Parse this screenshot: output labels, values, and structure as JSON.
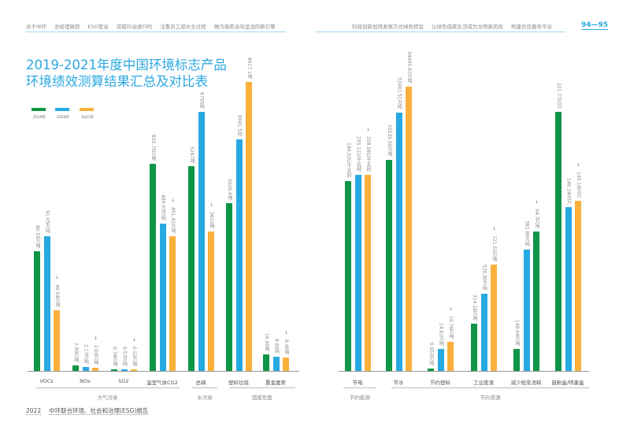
{
  "header": {
    "nav_left": [
      "关于中环",
      "总经理致辞",
      "ESG管治",
      "双碳行动进行时",
      "注重员工成长全过程",
      "做污染防治攻坚战的新引擎"
    ],
    "nav_right": [
      "科技创新加快发展方式绿色转型",
      "让绿色低碳生活成为文明新风尚",
      "构建信任服务平台"
    ],
    "page_number": "94—95"
  },
  "footer": {
    "year": "2022",
    "report": "中环联合环境、社会和治理(ESG)报告"
  },
  "chart_data": {
    "type": "bar",
    "title_line1": "2019-2021年度中国环境标志产品",
    "title_line2": "环境绩效测算结果汇总及对比表",
    "legend": [
      "2019年",
      "2020年",
      "2021年"
    ],
    "colors": [
      "#0e9547",
      "#27a9e1",
      "#fbb03b"
    ],
    "categories": [
      "VOCs",
      "NOx",
      "SO2",
      "温室气体CO2",
      "总磷",
      "塑料垃圾",
      "重金属汞",
      "节电",
      "节水",
      "节约塑料",
      "工业废渣",
      "减少纸浆消耗",
      "鼓粉盒/喷墨盒"
    ],
    "groups": [
      {
        "label": "大气污染",
        "categories": [
          "VOCs",
          "NOx",
          "SO2",
          "温室气体CO2"
        ]
      },
      {
        "label": "水污染",
        "categories": [
          "总磷"
        ]
      },
      {
        "label": "固废危废",
        "categories": [
          "塑料垃圾",
          "重金属汞"
        ]
      },
      {
        "label": "节约能源",
        "categories": [
          "节电"
        ]
      },
      {
        "label": "节约资源",
        "categories": [
          "节水",
          "节约塑料",
          "工业废渣",
          "减少纸浆消耗",
          "鼓粉盒/喷墨盒"
        ]
      }
    ],
    "series": [
      {
        "name": "2019年",
        "values": [
          80.55,
          2.9,
          0.76,
          655.75,
          5297,
          5026.6,
          10.99,
          194.03,
          25535.5,
          0.952,
          314.18,
          149.04,
          221.77
        ]
      },
      {
        "name": "2020年",
        "values": [
          91.05,
          2.17,
          0.57,
          489.03,
          6755,
          6941.5,
          8.89,
          255.11,
          32401.51,
          14.61,
          520.8,
          382.86,
          140.24
        ]
      },
      {
        "name": "2021年",
        "values": [
          40.54,
          2.0,
          0.52,
          451.41,
          3610,
          8617.1,
          8.4,
          258.58,
          34495.97,
          19.76,
          721.51,
          94.7,
          145.18
        ]
      }
    ],
    "labels": [
      [
        "80.55万吨",
        "2.90万吨",
        "0.76万吨",
        "655.75万吨",
        "5297吨",
        "5026.6吨",
        "10.99吨",
        "194.03亿千瓦时",
        "25535.50万吨",
        "0.952万吨",
        "314.18万吨",
        "149.04万吨",
        "221.77万只"
      ],
      [
        "91.05万吨",
        "2.17万吨",
        "0.57万吨",
        "489.03万吨",
        "6755吨",
        "6941.5吨",
        "8.89吨",
        "255.11亿千瓦时",
        "32401.51万吨",
        "14.61万吨",
        "520.80万吨",
        "382.86万吨",
        "140.24万只"
      ],
      [
        "40.54万吨",
        "2.00万吨",
        "0.52万吨",
        "451.41万吨",
        "3610吨",
        "8617.1吨",
        "8.40吨",
        "258.58亿千瓦时",
        "34495.97万吨",
        "19.76万吨",
        "721.51万吨",
        "94.7万吨",
        "145.18万只"
      ]
    ],
    "third_bar_colors": [
      "#fbb03b",
      "#fbb03b",
      "#fbb03b",
      "#fbb03b",
      "#fbb03b",
      "#fbb03b",
      "#fbb03b",
      "#fbb03b",
      "#fbb03b",
      "#fbb03b",
      "#fbb03b",
      "#0e9547",
      "#fbb03b"
    ],
    "arrow_marked": [
      0,
      1,
      2,
      3,
      4,
      6,
      7,
      9,
      10,
      11,
      12
    ]
  }
}
